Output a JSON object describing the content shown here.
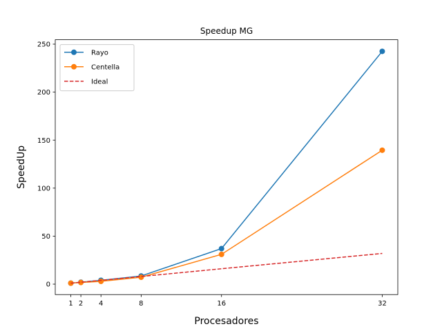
{
  "chart_data": {
    "type": "line",
    "title": "Speedup MG",
    "xlabel": "Procesadores",
    "ylabel": "SpeedUp",
    "x": [
      1,
      2,
      4,
      8,
      16,
      32
    ],
    "x_tick_labels": [
      "1",
      "2",
      "4",
      "8",
      "16",
      "32"
    ],
    "y_ticks": [
      0,
      50,
      100,
      150,
      200,
      250
    ],
    "y_tick_labels": [
      "0",
      "50",
      "100",
      "150",
      "200",
      "250"
    ],
    "xlim": [
      -0.55,
      33.55
    ],
    "ylim": [
      -10.9,
      254.6
    ],
    "grid": false,
    "legend_position": "upper-left",
    "series": [
      {
        "name": "Rayo",
        "color": "#1f77b4",
        "style": "solid",
        "marker": "circle",
        "values": [
          1.0,
          2.0,
          4.0,
          8.5,
          37.0,
          242.5
        ]
      },
      {
        "name": "Centella",
        "color": "#ff7f0e",
        "style": "solid",
        "marker": "circle",
        "values": [
          1.0,
          1.7,
          2.9,
          7.2,
          31.0,
          139.5
        ]
      },
      {
        "name": "Ideal",
        "color": "#d62728",
        "style": "dashed",
        "marker": "none",
        "values": [
          1,
          2,
          4,
          8,
          16,
          32
        ]
      }
    ]
  }
}
